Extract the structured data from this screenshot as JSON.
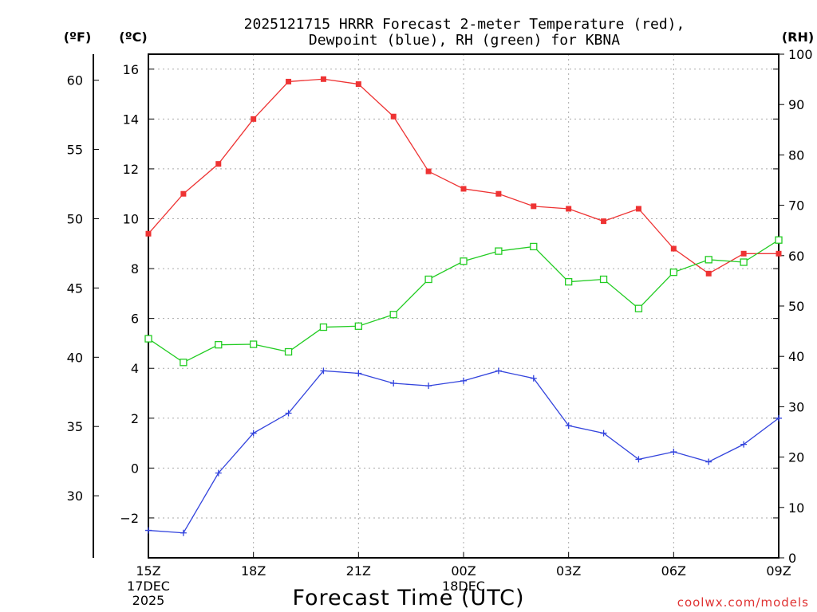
{
  "chart_data": {
    "type": "line",
    "title": [
      "2025121715 HRRR Forecast 2-meter Temperature (red),",
      "Dewpoint (blue), RH (green) for KBNA"
    ],
    "xlabel": "Forecast Time (UTC)",
    "units": {
      "left_f": "(ºF)",
      "left_c": "(ºC)",
      "right_rh": "(RH)"
    },
    "x_hours": [
      0,
      1,
      2,
      3,
      4,
      5,
      6,
      7,
      8,
      9,
      10,
      11,
      12,
      13,
      14,
      15,
      16,
      17,
      18
    ],
    "x_ticks": [
      {
        "h": 0,
        "label": "15Z",
        "sub": [
          "17DEC",
          "2025"
        ]
      },
      {
        "h": 3,
        "label": "18Z",
        "sub": []
      },
      {
        "h": 6,
        "label": "21Z",
        "sub": []
      },
      {
        "h": 9,
        "label": "00Z",
        "sub": [
          "18DEC"
        ]
      },
      {
        "h": 12,
        "label": "03Z",
        "sub": []
      },
      {
        "h": 15,
        "label": "06Z",
        "sub": []
      },
      {
        "h": 18,
        "label": "09Z",
        "sub": []
      }
    ],
    "celsius_axis": {
      "range": [
        -3.6,
        16.6
      ],
      "ticks": [
        -2,
        0,
        2,
        4,
        6,
        8,
        10,
        12,
        14,
        16
      ]
    },
    "fahrenheit_axis": {
      "ticks": [
        30,
        35,
        40,
        45,
        50,
        55,
        60
      ]
    },
    "rh_axis": {
      "range": [
        0,
        100
      ],
      "ticks": [
        0,
        10,
        20,
        30,
        40,
        50,
        60,
        70,
        80,
        90,
        100
      ]
    },
    "series": [
      {
        "name": "Temperature",
        "unit": "C",
        "color": "#ee3333",
        "marker": "filled-square",
        "values": [
          9.4,
          11.0,
          12.2,
          14.0,
          15.5,
          15.6,
          15.4,
          14.1,
          11.9,
          11.2,
          11.0,
          10.5,
          10.4,
          9.9,
          10.4,
          8.8,
          7.8,
          8.6,
          8.6
        ]
      },
      {
        "name": "Dewpoint",
        "unit": "C",
        "color": "#3344dd",
        "marker": "plus",
        "values": [
          -2.5,
          -2.6,
          -0.2,
          1.4,
          2.2,
          3.9,
          3.8,
          3.4,
          3.3,
          3.5,
          3.9,
          3.6,
          1.7,
          1.4,
          0.35,
          0.65,
          0.25,
          0.95,
          2.0
        ]
      },
      {
        "name": "RH",
        "unit": "%",
        "color": "#22cc22",
        "marker": "open-square",
        "values": [
          43.5,
          38.8,
          42.3,
          42.4,
          40.9,
          45.8,
          46.0,
          48.3,
          55.3,
          58.9,
          60.9,
          61.8,
          54.8,
          55.3,
          49.5,
          56.7,
          59.2,
          58.7,
          63.1
        ]
      }
    ]
  },
  "watermark": "coolwx.com/models"
}
